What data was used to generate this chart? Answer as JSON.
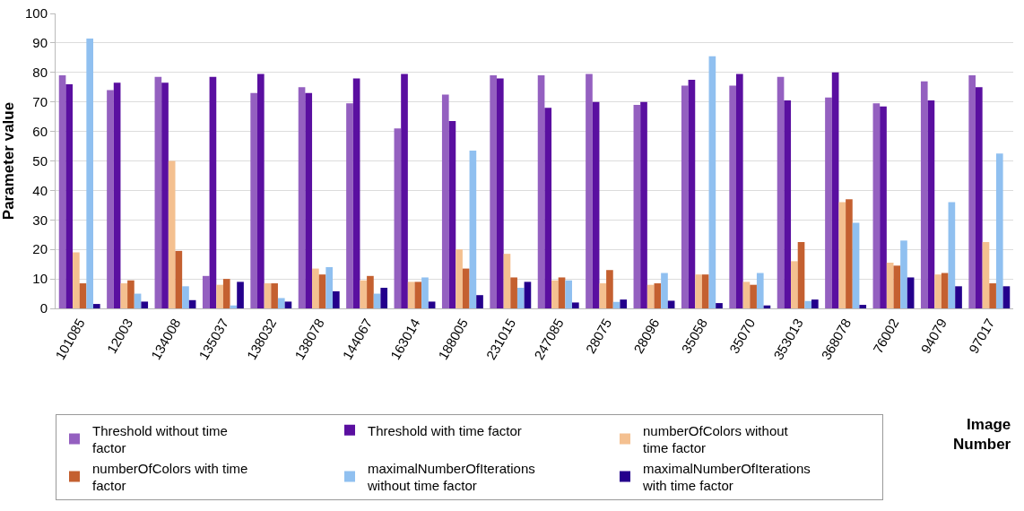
{
  "chart_data": {
    "type": "bar",
    "xlabel": "Image Number",
    "ylabel": "Parameter value",
    "categories": [
      "101085",
      "12003",
      "134008",
      "135037",
      "138032",
      "138078",
      "144067",
      "163014",
      "188005",
      "231015",
      "247085",
      "28075",
      "28096",
      "35058",
      "35070",
      "353013",
      "368078",
      "76002",
      "94079",
      "97017"
    ],
    "series": [
      {
        "name": "Threshold without time factor",
        "color": "#9460c0",
        "values": [
          79,
          74,
          78.5,
          11,
          73,
          75,
          69.5,
          61,
          72.5,
          79,
          79,
          79.5,
          69,
          75.5,
          75.5,
          78.5,
          71.5,
          69.5,
          77,
          79
        ]
      },
      {
        "name": "Threshold with time factor",
        "color": "#5a0fa0",
        "values": [
          76,
          76.5,
          76.5,
          78.5,
          79.5,
          73,
          78,
          79.5,
          63.5,
          78,
          68,
          70,
          70,
          77.5,
          79.5,
          70.5,
          80,
          68.5,
          70.5,
          75
        ]
      },
      {
        "name": "numberOfColors without time factor",
        "color": "#f4c090",
        "values": [
          19,
          8.5,
          50,
          8,
          8.5,
          13.5,
          9.5,
          9,
          20,
          18.5,
          9.5,
          8.5,
          8,
          11.5,
          9,
          16,
          36,
          15.5,
          11.5,
          22.5
        ]
      },
      {
        "name": "numberOfColors with time factor",
        "color": "#c46030",
        "values": [
          8.5,
          9.5,
          19.5,
          10,
          8.5,
          11.5,
          11,
          9,
          13.5,
          10.5,
          10.5,
          13,
          8.5,
          11.5,
          8,
          22.5,
          37,
          14.5,
          12,
          8.5
        ]
      },
      {
        "name": "maximalNumberOfIterations without time factor",
        "color": "#90c0f0",
        "values": [
          91.5,
          5,
          7.5,
          1,
          3.5,
          14,
          5,
          10.5,
          53.5,
          7,
          9.5,
          2.2,
          12,
          85.5,
          12,
          2.5,
          29,
          23,
          36,
          52.5
        ]
      },
      {
        "name": "maximalNumberOfIterations with time factor",
        "color": "#24008c",
        "values": [
          1.5,
          2.3,
          2.8,
          9,
          2.3,
          5.8,
          7,
          2.3,
          4.5,
          9,
          2,
          3,
          2.6,
          1.8,
          1,
          3,
          1.2,
          10.5,
          7.5,
          7.5
        ]
      }
    ],
    "ylim": [
      0,
      100
    ],
    "yticks": [
      0,
      10,
      20,
      30,
      40,
      50,
      60,
      70,
      80,
      90,
      100
    ],
    "grid": "y",
    "legend": "bottom left"
  }
}
